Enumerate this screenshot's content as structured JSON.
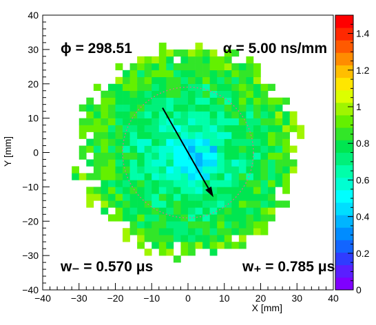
{
  "chart_data": {
    "type": "heatmap",
    "title": "",
    "xlabel": "X [mm]",
    "ylabel": "Y [mm]",
    "xlim": [
      -40,
      40
    ],
    "ylim": [
      -40,
      40
    ],
    "x_ticks": [
      "−40",
      "−30",
      "−20",
      "−10",
      "0",
      "10",
      "20",
      "30",
      "40"
    ],
    "y_ticks": [
      "−40",
      "−30",
      "−20",
      "−10",
      "0",
      "10",
      "20",
      "30",
      "40"
    ],
    "x_tick_values": [
      -40,
      -30,
      -20,
      -10,
      0,
      10,
      20,
      30,
      40
    ],
    "y_tick_values": [
      -40,
      -30,
      -20,
      -10,
      0,
      10,
      20,
      30,
      40
    ],
    "colorbar": {
      "min": 0,
      "max": 1.5,
      "ticks": [
        "0",
        "0.2",
        "0.4",
        "0.6",
        "0.8",
        "1",
        "1.2",
        "1.4"
      ],
      "tick_values": [
        0,
        0.2,
        0.4,
        0.6,
        0.8,
        1.0,
        1.2,
        1.4
      ],
      "palette": [
        "#7f00ff",
        "#5a1fff",
        "#2f3cff",
        "#1265ff",
        "#008cff",
        "#00b5ff",
        "#00deff",
        "#00ffff",
        "#00ffd2",
        "#00ffaa",
        "#00f07a",
        "#00e650",
        "#32e628",
        "#64f000",
        "#a0f500",
        "#dcff00",
        "#ffe600",
        "#ffbe00",
        "#ff8c00",
        "#ff5a00",
        "#ff2800",
        "#ff0000"
      ]
    },
    "pixel_size_mm": 2,
    "disk_radius_mm": 30.5,
    "dashed_circle_radius_mm": 18,
    "arrow": {
      "from": [
        -7,
        13
      ],
      "to": [
        7,
        -13
      ]
    },
    "annotations": {
      "phi_label": "ϕ = 298.51",
      "alpha_label": "α = 5.00 ns/mm",
      "w_minus_label": "w₋ = 0.570  μs",
      "w_plus_label": "w₊ = 0.785  μs"
    },
    "note": "Map of a diffusion-like parameter over the detector disk: values ≈0.5–0.6 in the center rising to ≈0.8–1.0 near the edge; a few missing pixels at the rim."
  }
}
